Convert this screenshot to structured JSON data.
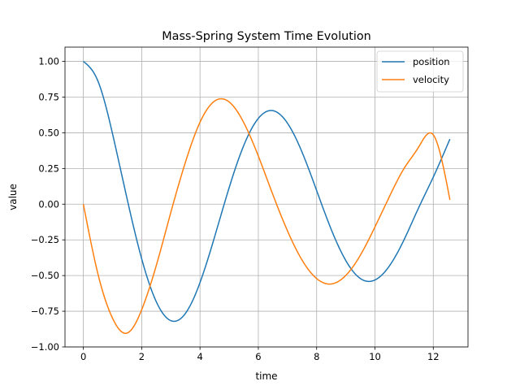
{
  "chart_data": {
    "type": "line",
    "title": "Mass-Spring System Time Evolution",
    "xlabel": "time",
    "ylabel": "value",
    "xlim": [
      -0.63,
      13.19
    ],
    "ylim": [
      -1.0,
      1.1
    ],
    "xticks": [
      0,
      2,
      4,
      6,
      8,
      10,
      12
    ],
    "xtick_labels": [
      "0",
      "2",
      "4",
      "6",
      "8",
      "10",
      "12"
    ],
    "yticks": [
      -1.0,
      -0.75,
      -0.5,
      -0.25,
      0.0,
      0.25,
      0.5,
      0.75,
      1.0
    ],
    "ytick_labels": [
      "−1.00",
      "−0.75",
      "−0.50",
      "−0.25",
      "0.00",
      "0.25",
      "0.50",
      "0.75",
      "1.00"
    ],
    "grid": true,
    "legend_position": "top-right",
    "series": [
      {
        "name": "position",
        "color": "#1f77b4",
        "x": [
          0.0,
          0.5,
          1.0,
          1.5,
          2.0,
          2.5,
          3.0,
          3.5,
          4.0,
          4.5,
          5.0,
          5.5,
          6.0,
          6.5,
          7.0,
          7.5,
          8.0,
          8.5,
          9.0,
          9.5,
          10.0,
          10.5,
          11.0,
          11.5,
          12.0,
          12.57
        ],
        "y": [
          1.0,
          0.862,
          0.493,
          0.037,
          -0.383,
          -0.683,
          -0.816,
          -0.765,
          -0.549,
          -0.229,
          0.116,
          0.411,
          0.601,
          0.655,
          0.567,
          0.364,
          0.095,
          -0.177,
          -0.395,
          -0.521,
          -0.531,
          -0.431,
          -0.248,
          -0.024,
          0.19,
          0.456
        ]
      },
      {
        "name": "velocity",
        "color": "#ff7f0e",
        "x": [
          0.0,
          0.5,
          1.0,
          1.5,
          2.0,
          2.5,
          3.0,
          3.5,
          4.0,
          4.5,
          5.0,
          5.5,
          6.0,
          6.5,
          7.0,
          7.5,
          8.0,
          8.5,
          9.0,
          9.5,
          10.0,
          10.5,
          11.0,
          11.5,
          12.0,
          12.57
        ],
        "y": [
          0.0,
          -0.489,
          -0.799,
          -0.903,
          -0.739,
          -0.43,
          -0.057,
          0.294,
          0.574,
          0.722,
          0.716,
          0.571,
          0.337,
          0.066,
          -0.187,
          -0.392,
          -0.521,
          -0.559,
          -0.499,
          -0.357,
          -0.159,
          0.055,
          0.251,
          0.401,
          0.486,
          0.03
        ]
      }
    ]
  }
}
